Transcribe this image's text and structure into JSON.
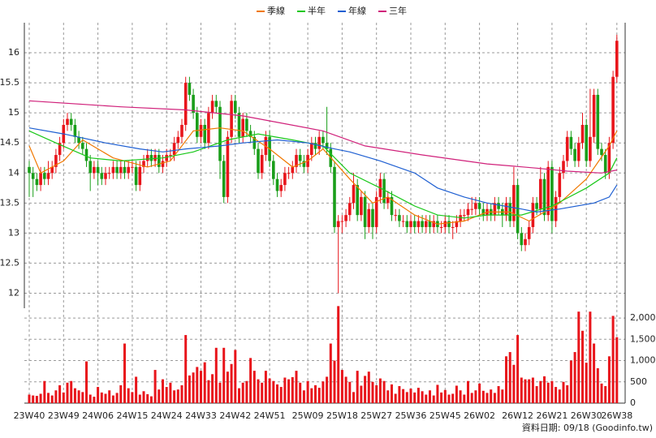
{
  "chart_data": {
    "type": "candlestick",
    "source": "資料日期: 09/18  (Goodinfo.tw)",
    "categories": [
      "23W40",
      null,
      null,
      null,
      null,
      null,
      null,
      null,
      null,
      "23W49",
      null,
      null,
      null,
      null,
      null,
      null,
      null,
      null,
      "24W06",
      null,
      null,
      null,
      null,
      null,
      null,
      null,
      null,
      "24W15",
      null,
      null,
      null,
      null,
      null,
      null,
      null,
      null,
      "24W24",
      null,
      null,
      null,
      null,
      null,
      null,
      null,
      null,
      "24W33",
      null,
      null,
      null,
      null,
      null,
      null,
      null,
      null,
      "24W42",
      null,
      null,
      null,
      null,
      null,
      null,
      null,
      null,
      "24W51",
      null,
      null,
      null,
      null,
      null,
      null,
      null,
      null,
      null,
      "25W09",
      null,
      null,
      null,
      null,
      null,
      null,
      null,
      null,
      "25W18",
      null,
      null,
      null,
      null,
      null,
      null,
      null,
      null,
      "25W27",
      null,
      null,
      null,
      null,
      null,
      null,
      null,
      null,
      "25W36",
      null,
      null,
      null,
      null,
      null,
      null,
      null,
      null,
      "25W45",
      null,
      null,
      null,
      null,
      null,
      null,
      null,
      null,
      "26W02",
      null,
      null,
      null,
      null,
      null,
      null,
      null,
      null,
      null,
      "26W12",
      null,
      null,
      null,
      null,
      null,
      null,
      null,
      null,
      "26W21",
      null,
      null,
      null,
      null,
      null,
      null,
      null,
      null,
      "26W30",
      null,
      null,
      null,
      null,
      null,
      null,
      null,
      "26W38"
    ],
    "candles": [
      [
        14.1,
        14.2,
        13.6,
        14.0
      ],
      [
        14.0,
        14.1,
        13.6,
        13.9
      ],
      [
        13.9,
        14.0,
        13.7,
        13.8
      ],
      [
        13.8,
        14.1,
        13.7,
        14.0
      ],
      [
        14.0,
        14.1,
        13.8,
        13.9
      ],
      [
        13.9,
        14.2,
        13.8,
        14.0
      ],
      [
        14.0,
        14.2,
        13.9,
        14.1
      ],
      [
        14.1,
        14.4,
        14.0,
        14.3
      ],
      [
        14.3,
        14.6,
        14.2,
        14.5
      ],
      [
        14.5,
        14.9,
        14.4,
        14.8
      ],
      [
        14.8,
        15.0,
        14.7,
        14.9
      ],
      [
        14.9,
        15.0,
        14.7,
        14.8
      ],
      [
        14.8,
        14.9,
        14.5,
        14.6
      ],
      [
        14.6,
        14.7,
        14.4,
        14.5
      ],
      [
        14.5,
        14.6,
        14.3,
        14.4
      ],
      [
        14.4,
        14.5,
        14.1,
        14.2
      ],
      [
        14.2,
        14.3,
        13.7,
        14.0
      ],
      [
        14.0,
        14.2,
        13.9,
        14.1
      ],
      [
        14.1,
        14.2,
        13.8,
        14.0
      ],
      [
        14.0,
        14.1,
        13.8,
        13.9
      ],
      [
        13.9,
        14.1,
        13.8,
        14.0
      ],
      [
        14.0,
        14.1,
        13.9,
        14.0
      ],
      [
        14.0,
        14.2,
        13.9,
        14.1
      ],
      [
        14.1,
        14.2,
        13.9,
        14.0
      ],
      [
        14.0,
        14.2,
        13.9,
        14.1
      ],
      [
        14.1,
        14.2,
        13.9,
        14.0
      ],
      [
        14.0,
        14.2,
        13.9,
        14.1
      ],
      [
        14.1,
        14.2,
        14.0,
        14.1
      ],
      [
        14.1,
        14.2,
        13.7,
        13.8
      ],
      [
        13.8,
        14.2,
        13.7,
        14.1
      ],
      [
        14.1,
        14.3,
        14.0,
        14.2
      ],
      [
        14.2,
        14.4,
        14.1,
        14.3
      ],
      [
        14.3,
        14.4,
        14.1,
        14.2
      ],
      [
        14.2,
        14.4,
        14.1,
        14.3
      ],
      [
        14.3,
        14.4,
        14.0,
        14.1
      ],
      [
        14.1,
        14.3,
        14.0,
        14.2
      ],
      [
        14.2,
        14.4,
        14.1,
        14.3
      ],
      [
        14.3,
        14.4,
        14.2,
        14.3
      ],
      [
        14.3,
        14.6,
        14.2,
        14.5
      ],
      [
        14.5,
        14.7,
        14.4,
        14.6
      ],
      [
        14.6,
        14.9,
        14.5,
        14.8
      ],
      [
        14.8,
        15.6,
        14.7,
        15.5
      ],
      [
        15.5,
        15.6,
        15.2,
        15.3
      ],
      [
        15.3,
        15.4,
        14.9,
        15.0
      ],
      [
        15.0,
        15.1,
        14.5,
        14.6
      ],
      [
        14.6,
        14.9,
        14.5,
        14.8
      ],
      [
        14.8,
        14.9,
        14.4,
        14.5
      ],
      [
        14.5,
        15.1,
        14.4,
        15.0
      ],
      [
        15.0,
        15.3,
        14.9,
        15.2
      ],
      [
        15.2,
        15.3,
        15.0,
        15.1
      ],
      [
        15.1,
        15.2,
        13.9,
        14.2
      ],
      [
        14.2,
        14.3,
        13.5,
        13.6
      ],
      [
        13.6,
        14.7,
        13.5,
        14.6
      ],
      [
        14.6,
        15.3,
        14.5,
        15.2
      ],
      [
        15.2,
        15.3,
        14.9,
        15.0
      ],
      [
        15.0,
        15.1,
        14.5,
        14.6
      ],
      [
        14.6,
        15.0,
        14.5,
        14.9
      ],
      [
        14.9,
        15.0,
        14.6,
        14.7
      ],
      [
        14.7,
        14.8,
        14.5,
        14.6
      ],
      [
        14.6,
        14.7,
        14.3,
        14.4
      ],
      [
        14.4,
        14.5,
        13.9,
        14.0
      ],
      [
        14.0,
        14.4,
        13.9,
        14.3
      ],
      [
        14.3,
        14.7,
        14.2,
        14.6
      ],
      [
        14.6,
        14.7,
        14.1,
        14.2
      ],
      [
        14.2,
        14.3,
        13.8,
        13.9
      ],
      [
        13.9,
        14.0,
        13.6,
        13.7
      ],
      [
        13.7,
        13.9,
        13.6,
        13.8
      ],
      [
        13.8,
        14.1,
        13.7,
        14.0
      ],
      [
        14.0,
        14.1,
        13.9,
        14.0
      ],
      [
        14.0,
        14.2,
        13.9,
        14.1
      ],
      [
        14.1,
        14.4,
        14.0,
        14.3
      ],
      [
        14.3,
        14.4,
        14.1,
        14.2
      ],
      [
        14.2,
        14.3,
        14.0,
        14.1
      ],
      [
        14.1,
        14.4,
        14.0,
        14.3
      ],
      [
        14.3,
        14.6,
        14.2,
        14.5
      ],
      [
        14.5,
        14.6,
        14.3,
        14.4
      ],
      [
        14.4,
        14.7,
        14.3,
        14.6
      ],
      [
        14.6,
        14.7,
        14.4,
        14.5
      ],
      [
        14.5,
        15.1,
        14.3,
        14.4
      ],
      [
        14.4,
        14.5,
        14.0,
        14.1
      ],
      [
        14.1,
        14.2,
        13.0,
        13.1
      ],
      [
        13.1,
        13.3,
        12.0,
        13.2
      ],
      [
        13.2,
        13.3,
        13.0,
        13.2
      ],
      [
        13.2,
        13.4,
        13.1,
        13.3
      ],
      [
        13.3,
        13.6,
        13.2,
        13.5
      ],
      [
        13.5,
        14.0,
        13.4,
        13.8
      ],
      [
        13.8,
        13.9,
        13.2,
        13.3
      ],
      [
        13.3,
        13.7,
        13.2,
        13.6
      ],
      [
        13.6,
        13.7,
        12.9,
        13.1
      ],
      [
        13.1,
        13.5,
        13.0,
        13.4
      ],
      [
        13.4,
        13.5,
        12.9,
        13.1
      ],
      [
        13.1,
        13.7,
        13.0,
        13.6
      ],
      [
        13.6,
        14.0,
        13.5,
        13.9
      ],
      [
        13.9,
        14.0,
        13.4,
        13.5
      ],
      [
        13.5,
        13.7,
        13.4,
        13.6
      ],
      [
        13.6,
        13.7,
        13.2,
        13.3
      ],
      [
        13.3,
        13.4,
        13.2,
        13.3
      ],
      [
        13.3,
        13.4,
        13.1,
        13.2
      ],
      [
        13.2,
        13.3,
        13.1,
        13.2
      ],
      [
        13.2,
        13.3,
        13.0,
        13.1
      ],
      [
        13.1,
        13.3,
        13.0,
        13.2
      ],
      [
        13.2,
        13.3,
        13.0,
        13.1
      ],
      [
        13.1,
        13.3,
        13.0,
        13.2
      ],
      [
        13.2,
        13.3,
        13.0,
        13.1
      ],
      [
        13.1,
        13.3,
        13.0,
        13.2
      ],
      [
        13.2,
        13.3,
        13.0,
        13.1
      ],
      [
        13.1,
        13.3,
        13.0,
        13.2
      ],
      [
        13.2,
        13.3,
        13.0,
        13.1
      ],
      [
        13.1,
        13.2,
        13.0,
        13.1
      ],
      [
        13.1,
        13.3,
        13.0,
        13.2
      ],
      [
        13.2,
        13.3,
        13.0,
        13.1
      ],
      [
        13.1,
        13.2,
        12.9,
        13.1
      ],
      [
        13.1,
        13.3,
        13.0,
        13.2
      ],
      [
        13.2,
        13.4,
        13.1,
        13.3
      ],
      [
        13.3,
        13.4,
        13.2,
        13.3
      ],
      [
        13.3,
        13.5,
        13.2,
        13.4
      ],
      [
        13.4,
        13.6,
        13.3,
        13.4
      ],
      [
        13.4,
        13.6,
        13.3,
        13.5
      ],
      [
        13.5,
        13.6,
        13.3,
        13.4
      ],
      [
        13.4,
        13.5,
        13.2,
        13.3
      ],
      [
        13.3,
        13.5,
        13.2,
        13.4
      ],
      [
        13.4,
        13.5,
        13.2,
        13.3
      ],
      [
        13.3,
        13.6,
        13.2,
        13.5
      ],
      [
        13.5,
        13.6,
        13.3,
        13.4
      ],
      [
        13.4,
        13.5,
        13.1,
        13.3
      ],
      [
        13.3,
        13.6,
        13.2,
        13.5
      ],
      [
        13.5,
        13.6,
        13.1,
        13.2
      ],
      [
        13.2,
        14.1,
        13.1,
        13.8
      ],
      [
        13.8,
        13.9,
        12.9,
        13.0
      ],
      [
        13.0,
        13.1,
        12.7,
        12.8
      ],
      [
        12.8,
        13.0,
        12.7,
        12.9
      ],
      [
        12.9,
        13.2,
        12.8,
        13.1
      ],
      [
        13.1,
        13.6,
        13.0,
        13.5
      ],
      [
        13.5,
        13.6,
        13.3,
        13.4
      ],
      [
        13.4,
        14.1,
        13.3,
        13.9
      ],
      [
        13.9,
        14.0,
        13.2,
        13.3
      ],
      [
        13.3,
        14.2,
        13.2,
        14.1
      ],
      [
        14.1,
        14.2,
        13.0,
        13.2
      ],
      [
        13.2,
        13.7,
        13.1,
        13.6
      ],
      [
        13.6,
        14.1,
        13.5,
        14.0
      ],
      [
        14.0,
        14.3,
        13.9,
        14.2
      ],
      [
        14.2,
        14.7,
        14.1,
        14.6
      ],
      [
        14.6,
        14.7,
        14.3,
        14.4
      ],
      [
        14.4,
        14.5,
        14.1,
        14.2
      ],
      [
        14.2,
        14.6,
        14.1,
        14.5
      ],
      [
        14.5,
        15.0,
        14.4,
        14.8
      ],
      [
        14.8,
        14.9,
        14.1,
        14.2
      ],
      [
        14.2,
        15.4,
        14.1,
        14.6
      ],
      [
        14.6,
        15.4,
        14.5,
        15.3
      ],
      [
        15.3,
        15.4,
        14.3,
        14.4
      ],
      [
        14.4,
        14.5,
        14.2,
        14.3
      ],
      [
        14.3,
        14.4,
        13.9,
        14.0
      ],
      [
        14.0,
        14.6,
        13.9,
        14.5
      ],
      [
        14.5,
        15.7,
        14.4,
        15.6
      ],
      [
        15.6,
        16.3,
        15.5,
        16.2
      ]
    ],
    "up_color": "#e8151b",
    "down_color": "#1a9e1a",
    "ylim": [
      11.75,
      16.5
    ],
    "yticks": [
      12,
      12.5,
      13,
      13.5,
      14,
      14.5,
      15,
      15.5,
      16
    ],
    "grid": true,
    "series": [
      {
        "name": "季線",
        "color": "#f07800",
        "x": [
          0,
          3,
          9,
          14,
          22,
          31,
          37,
          43,
          50,
          56,
          63,
          69,
          73,
          77,
          84,
          90,
          94,
          101,
          107,
          114,
          120,
          126,
          131,
          139,
          146,
          152,
          154
        ],
        "values": [
          14.45,
          14.0,
          14.2,
          14.55,
          14.25,
          14.1,
          14.2,
          14.7,
          14.75,
          14.7,
          14.4,
          14.1,
          14.2,
          14.4,
          13.9,
          13.5,
          13.6,
          13.3,
          13.15,
          13.2,
          13.35,
          13.35,
          13.2,
          13.5,
          13.9,
          14.45,
          14.7
        ]
      },
      {
        "name": "半年",
        "color": "#19c819",
        "x": [
          0,
          7,
          16,
          24,
          35,
          43,
          52,
          60,
          69,
          77,
          84,
          92,
          101,
          107,
          114,
          120,
          129,
          137,
          146,
          152,
          154
        ],
        "values": [
          14.7,
          14.5,
          14.25,
          14.2,
          14.25,
          14.35,
          14.55,
          14.65,
          14.55,
          14.45,
          14.0,
          13.75,
          13.45,
          13.3,
          13.25,
          13.3,
          13.3,
          13.45,
          13.75,
          14.0,
          14.25
        ]
      },
      {
        "name": "年線",
        "color": "#1e5fd2",
        "x": [
          0,
          9,
          20,
          29,
          35,
          41,
          50,
          56,
          65,
          73,
          80,
          84,
          92,
          101,
          107,
          114,
          120,
          129,
          133,
          139,
          148,
          152,
          154
        ],
        "values": [
          14.75,
          14.65,
          14.5,
          14.4,
          14.35,
          14.4,
          14.45,
          14.5,
          14.55,
          14.5,
          14.4,
          14.35,
          14.2,
          14.0,
          13.75,
          13.6,
          13.5,
          13.4,
          13.35,
          13.4,
          13.5,
          13.6,
          13.8
        ]
      },
      {
        "name": "三年",
        "color": "#d0207a",
        "x": [
          0,
          24,
          41,
          56,
          77,
          88,
          103,
          120,
          133,
          141,
          150,
          154
        ],
        "values": [
          15.2,
          15.1,
          15.05,
          14.95,
          14.7,
          14.45,
          14.3,
          14.15,
          14.08,
          14.03,
          14.0,
          14.05
        ]
      }
    ],
    "volume": {
      "color": "#e8151b",
      "ylim": [
        0,
        2230
      ],
      "yticks": [
        0,
        500,
        {
          "value": 1000,
          "label": "1,000"
        },
        {
          "value": 1500,
          "label": "1,500"
        },
        {
          "value": 2000,
          "label": "2,000"
        }
      ],
      "values": [
        200,
        180,
        170,
        220,
        520,
        240,
        180,
        300,
        420,
        250,
        480,
        520,
        350,
        300,
        260,
        980,
        200,
        150,
        380,
        250,
        220,
        300,
        180,
        240,
        420,
        1400,
        350,
        260,
        620,
        200,
        280,
        210,
        160,
        780,
        320,
        560,
        380,
        480,
        300,
        320,
        420,
        1600,
        650,
        720,
        850,
        760,
        960,
        540,
        680,
        1300,
        480,
        1300,
        740,
        920,
        1250,
        350,
        480,
        520,
        1060,
        760,
        560,
        480,
        760,
        580,
        520,
        440,
        380,
        600,
        560,
        610,
        760,
        480,
        300,
        520,
        350,
        420,
        360,
        510,
        620,
        1400,
        1000,
        2280,
        780,
        620,
        500,
        260,
        760,
        410,
        640,
        740,
        500,
        420,
        580,
        520,
        300,
        440,
        220,
        400,
        330,
        260,
        340,
        250,
        360,
        280,
        200,
        300,
        180,
        430,
        250,
        310,
        200,
        220,
        410,
        300,
        200,
        520,
        240,
        300,
        460,
        290,
        240,
        320,
        240,
        400,
        320,
        1100,
        1200,
        900,
        1600,
        600,
        560,
        560,
        600,
        400,
        520,
        630,
        480,
        520,
        380,
        320,
        500,
        420,
        1000,
        1200,
        2150,
        1700,
        950,
        2150,
        1400,
        820,
        460,
        400,
        1100,
        2050,
        1550
      ]
    }
  }
}
